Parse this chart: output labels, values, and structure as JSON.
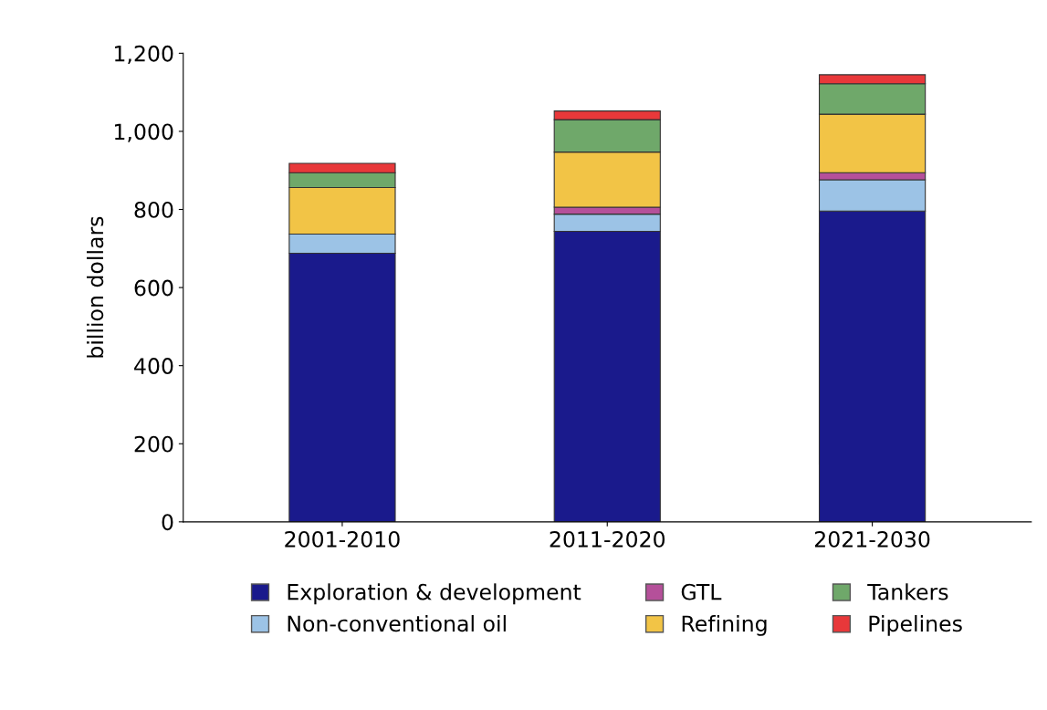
{
  "chart_data": {
    "type": "bar",
    "stacked": true,
    "ylabel": "billion dollars",
    "categories": [
      "2001-2010",
      "2011-2020",
      "2021-2030"
    ],
    "series": [
      {
        "name": "Exploration & development",
        "color": "#1a1a8c",
        "values": [
          688,
          744,
          796
        ]
      },
      {
        "name": "Non-conventional oil",
        "color": "#9cc3e6",
        "values": [
          49,
          44,
          80
        ]
      },
      {
        "name": "GTL",
        "color": "#b5509a",
        "values": [
          0,
          18,
          18
        ]
      },
      {
        "name": "Refining",
        "color": "#f2c446",
        "values": [
          119,
          141,
          150
        ]
      },
      {
        "name": "Tankers",
        "color": "#6fa86a",
        "values": [
          38,
          83,
          78
        ]
      },
      {
        "name": "Pipelines",
        "color": "#e8383a",
        "values": [
          24,
          22,
          23
        ]
      }
    ],
    "ylim": [
      0,
      1200
    ],
    "yticks": [
      {
        "value": 0,
        "label": "0"
      },
      {
        "value": 200,
        "label": "200"
      },
      {
        "value": 400,
        "label": "400"
      },
      {
        "value": 600,
        "label": "600"
      },
      {
        "value": 800,
        "label": "800"
      },
      {
        "value": 1000,
        "label": "1,000"
      },
      {
        "value": 1200,
        "label": "1,200"
      }
    ],
    "grid": false,
    "legend": "bottom"
  }
}
